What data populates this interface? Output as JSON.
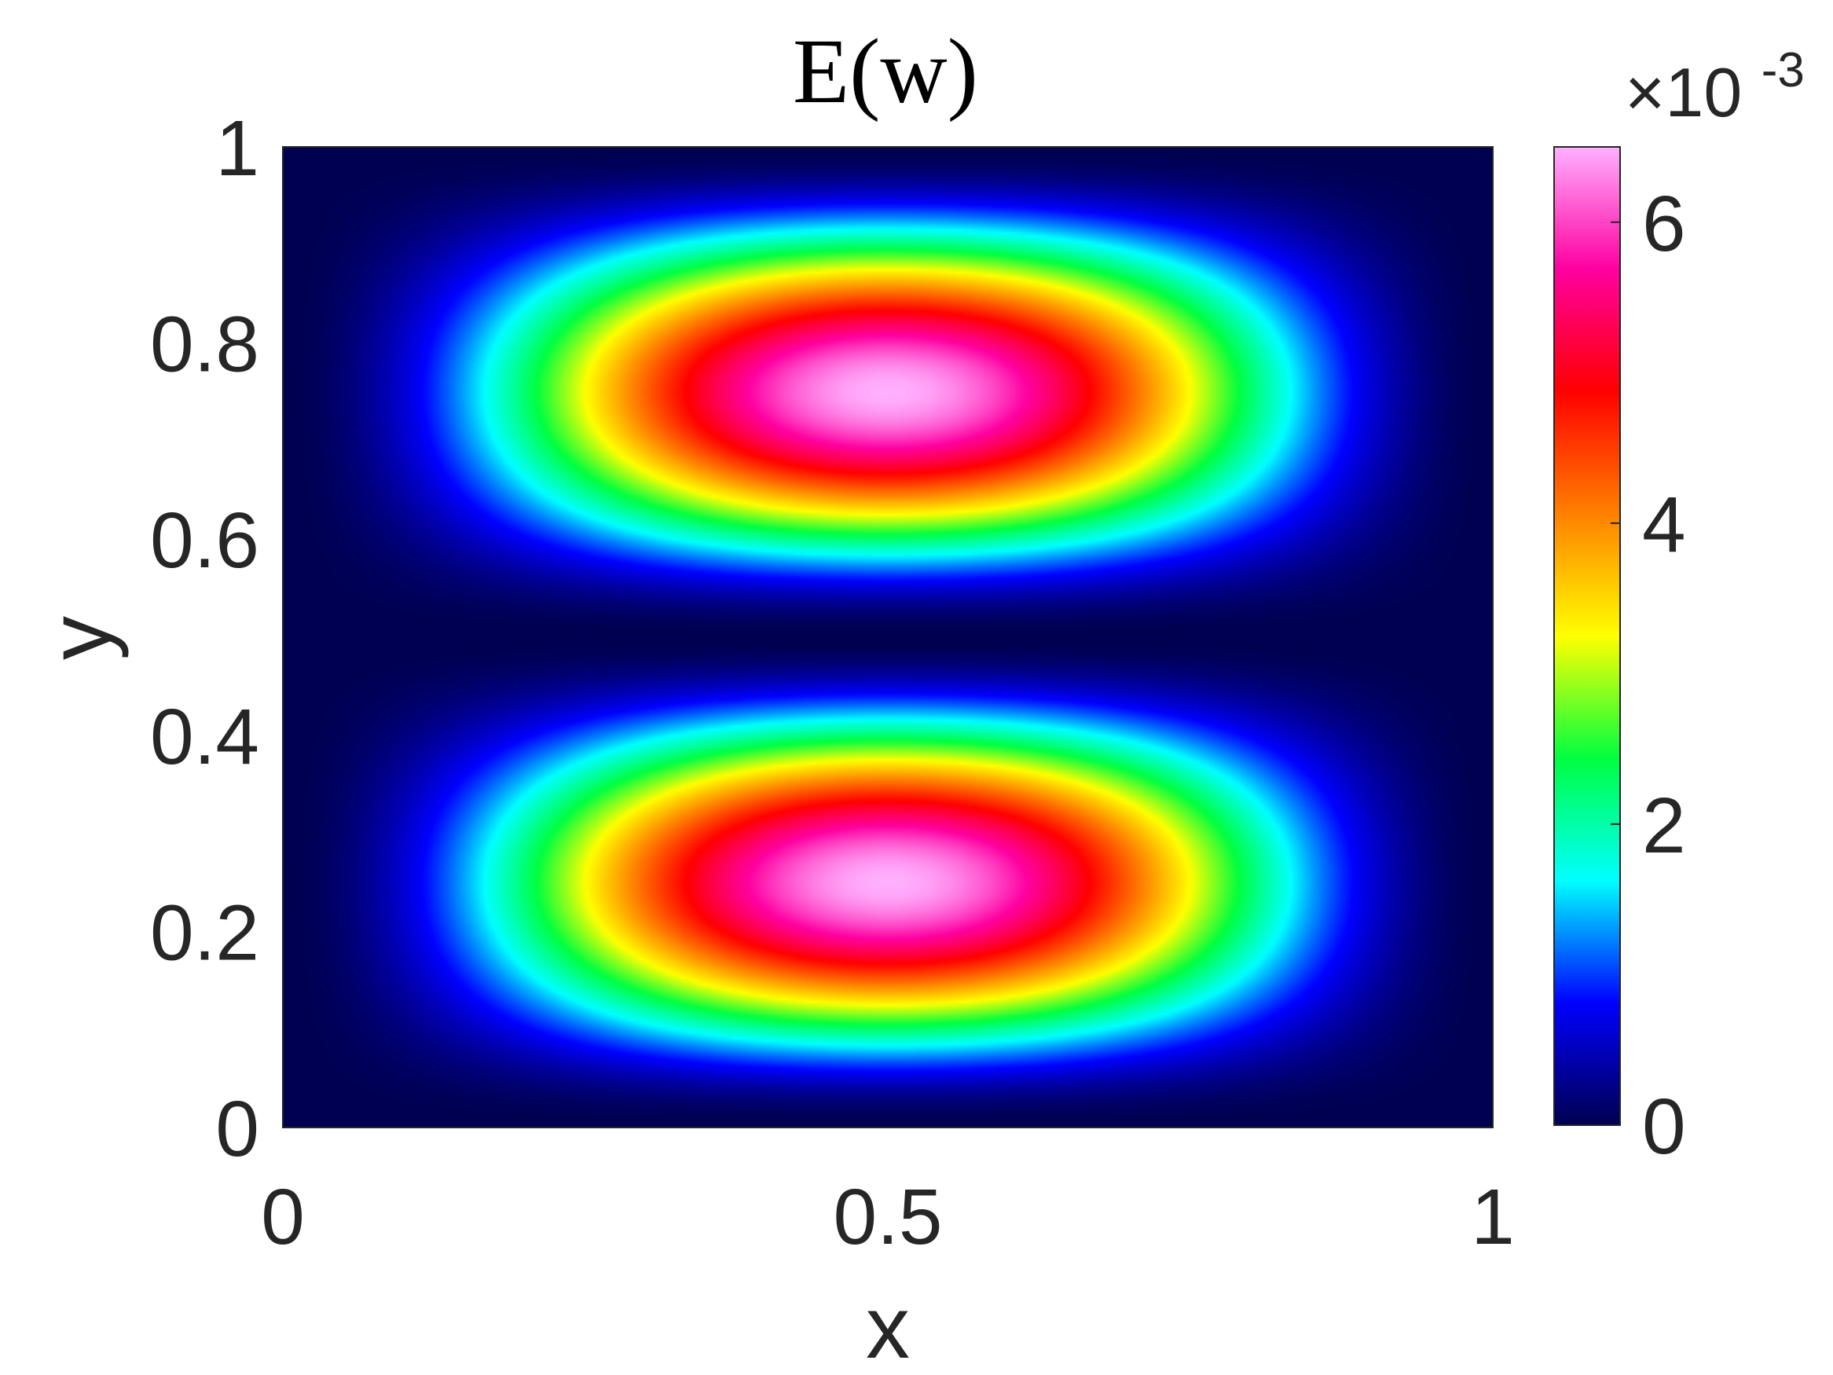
{
  "chart_data": {
    "type": "heatmap",
    "title": "E(w)",
    "xlabel": "x",
    "ylabel": "y",
    "xlim": [
      0,
      1
    ],
    "ylim": [
      0,
      1
    ],
    "x_ticks": [
      "0",
      "0.5",
      "1"
    ],
    "x_tick_values": [
      0,
      0.5,
      1
    ],
    "y_ticks": [
      "0",
      "0.2",
      "0.4",
      "0.6",
      "0.8",
      "1"
    ],
    "y_tick_values": [
      0,
      0.2,
      0.4,
      0.6,
      0.8,
      1
    ],
    "colorbar": {
      "range": [
        0,
        0.0065
      ],
      "ticks": [
        "0",
        "2",
        "4",
        "6"
      ],
      "tick_values": [
        0,
        0.002,
        0.004,
        0.006
      ],
      "multiplier": "×10",
      "exponent": "-3",
      "colormap": [
        "#000050",
        "#0000ff",
        "#00ffff",
        "#00ff40",
        "#ffff00",
        "#ff8000",
        "#ff0000",
        "#ff00a0",
        "#ffb0ff"
      ]
    },
    "peaks": [
      {
        "x": 0.5,
        "y": 0.25,
        "value": 0.0065
      },
      {
        "x": 0.5,
        "y": 0.75,
        "value": 0.0065
      }
    ],
    "grid": false
  }
}
